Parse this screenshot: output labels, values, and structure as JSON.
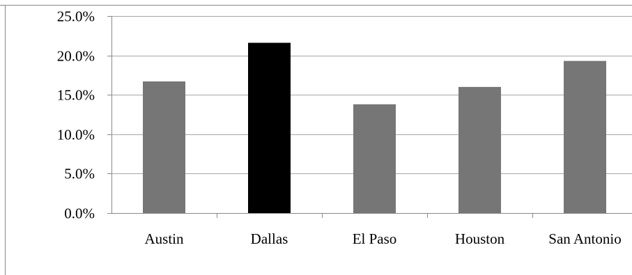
{
  "chart_data": {
    "type": "bar",
    "categories": [
      "Austin",
      "Dallas",
      "El Paso",
      "Houston",
      "San Antonio"
    ],
    "values": [
      16.7,
      21.6,
      13.8,
      16.0,
      19.3
    ],
    "highlight_category": "Dallas",
    "title": "",
    "xlabel": "",
    "ylabel": "",
    "ylim": [
      0,
      25
    ],
    "yticks": [
      0,
      5,
      10,
      15,
      20,
      25
    ],
    "ytick_labels": [
      "0.0%",
      "5.0%",
      "10.0%",
      "15.0%",
      "20.0%",
      "25.0%"
    ],
    "grid": true,
    "legend": "none",
    "colors": {
      "bar": "#767676",
      "highlight": "#000000",
      "grid": "#a6a6a6",
      "axis": "#888888",
      "border": "#888888"
    }
  }
}
